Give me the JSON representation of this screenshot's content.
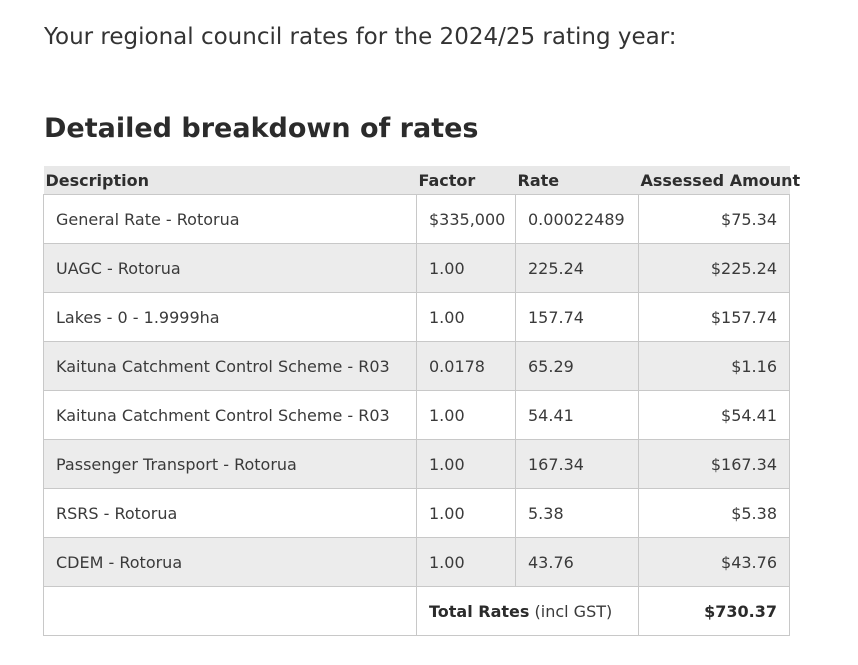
{
  "intro_text": "Your regional council rates for the 2024/25 rating year:",
  "section_title": "Detailed breakdown of rates",
  "table": {
    "headers": {
      "description": "Description",
      "factor": "Factor",
      "rate": "Rate",
      "amount": "Assessed Amount"
    },
    "rows": [
      {
        "description": "General Rate - Rotorua",
        "factor": "$335,000",
        "rate": "0.00022489",
        "amount": "$75.34"
      },
      {
        "description": "UAGC - Rotorua",
        "factor": "1.00",
        "rate": "225.24",
        "amount": "$225.24"
      },
      {
        "description": "Lakes - 0 - 1.9999ha",
        "factor": "1.00",
        "rate": "157.74",
        "amount": "$157.74"
      },
      {
        "description": "Kaituna Catchment Control Scheme - R03",
        "factor": "0.0178",
        "rate": "65.29",
        "amount": "$1.16"
      },
      {
        "description": "Kaituna Catchment Control Scheme - R03",
        "factor": "1.00",
        "rate": "54.41",
        "amount": "$54.41"
      },
      {
        "description": "Passenger Transport - Rotorua",
        "factor": "1.00",
        "rate": "167.34",
        "amount": "$167.34"
      },
      {
        "description": "RSRS - Rotorua",
        "factor": "1.00",
        "rate": "5.38",
        "amount": "$5.38"
      },
      {
        "description": "CDEM - Rotorua",
        "factor": "1.00",
        "rate": "43.76",
        "amount": "$43.76"
      }
    ],
    "total": {
      "label": "Total Rates",
      "label_suffix": "(incl GST)",
      "amount": "$730.37"
    }
  }
}
